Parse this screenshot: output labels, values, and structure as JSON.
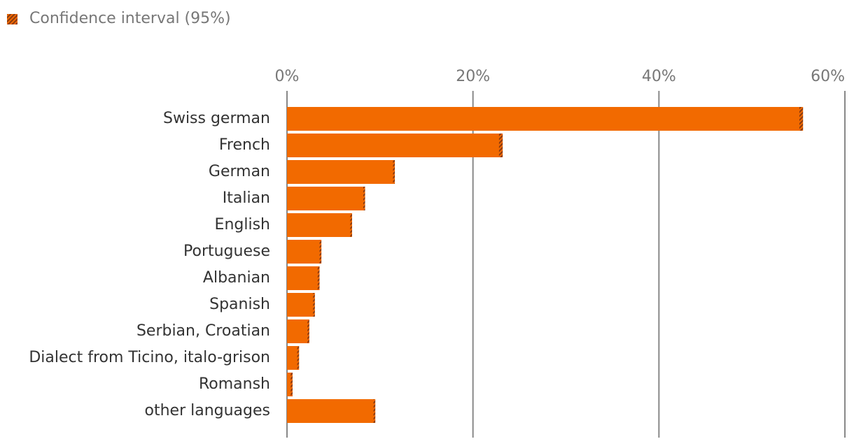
{
  "chart_data": {
    "type": "bar",
    "orientation": "horizontal",
    "legend": "Confidence interval (95%)",
    "categories": [
      "Swiss german",
      "French",
      "German",
      "Italian",
      "English",
      "Portuguese",
      "Albanian",
      "Spanish",
      "Serbian, Croatian",
      "Dialect from Ticino, italo-grison",
      "Romansh",
      "other languages"
    ],
    "values": [
      55.3,
      23.0,
      11.5,
      8.3,
      6.9,
      3.6,
      3.4,
      2.9,
      2.3,
      1.2,
      0.5,
      9.4
    ],
    "errors": [
      0.2,
      0.2,
      0.1,
      0.1,
      0.1,
      0.1,
      0.1,
      0.1,
      0.1,
      0.1,
      0.1,
      0.1
    ],
    "color": "#f26a00",
    "error_color": "#8a3a10",
    "xlim": [
      0,
      60
    ],
    "xticks": [
      {
        "value": 0,
        "label": "0%"
      },
      {
        "value": 20,
        "label": "20%"
      },
      {
        "value": 40,
        "label": "40%"
      },
      {
        "value": 60,
        "label": "60%"
      }
    ],
    "grid": true
  }
}
